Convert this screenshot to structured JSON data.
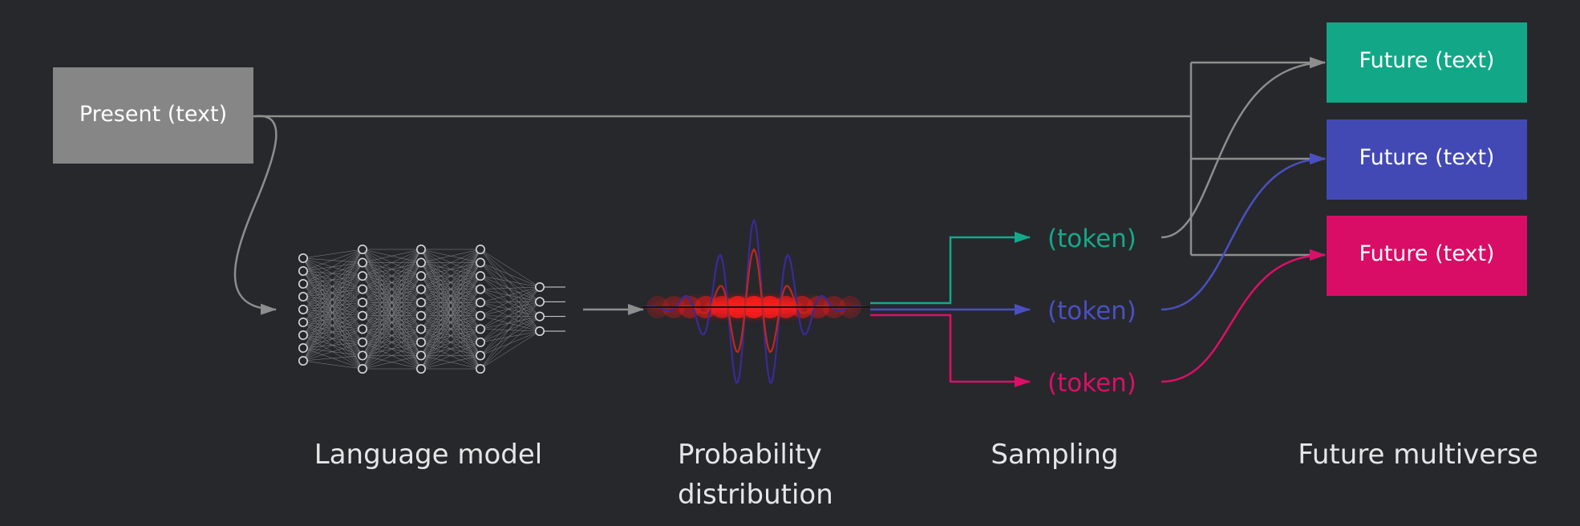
{
  "present": {
    "label": "Present (text)",
    "color": "#868686"
  },
  "futures": [
    {
      "label": "Future (text)",
      "color": "#12a887"
    },
    {
      "label": "Future (text)",
      "color": "#4249b5"
    },
    {
      "label": "Future (text)",
      "color": "#d90d66"
    }
  ],
  "tokens": [
    {
      "label": "(token)",
      "color": "#14a98a"
    },
    {
      "label": "(token)",
      "color": "#4a50c0"
    },
    {
      "label": "(token)",
      "color": "#dc0f68"
    }
  ],
  "stages": {
    "language_model": "Language model",
    "probability_line1": "Probability",
    "probability_line2": "distribution",
    "sampling": "Sampling",
    "future_multiverse": "Future multiverse"
  },
  "colors": {
    "background": "#27282c",
    "connector": "#8e8e8e",
    "neural_net": "#d8d8d8",
    "distribution_glow": "#ff1a1a",
    "wave_blue": "#3a2a9a",
    "wave_red": "#c0281a"
  },
  "icons": {
    "model": "neural-network-icon",
    "distribution": "probability-wave-icon"
  }
}
